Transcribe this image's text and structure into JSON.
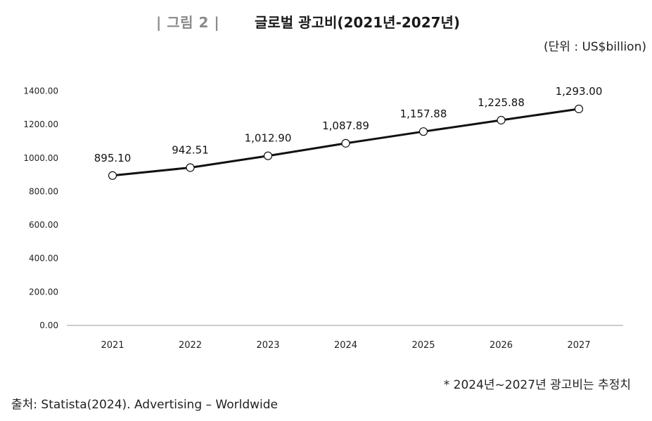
{
  "figure": {
    "label": "| 그림 2 |",
    "title": "글로벌 광고비(2021년-2027년)",
    "unit": "(단위 : US$billion)"
  },
  "note": "* 2024년~2027년 광고비는 추정치",
  "source": "출처: Statista(2024). Advertising – Worldwide",
  "colors": {
    "line": "#111111",
    "marker_fill": "#ffffff",
    "axis": "#999999",
    "label_gray": "#8a8a8a"
  },
  "chart_data": {
    "type": "line",
    "title": "글로벌 광고비(2021년-2027년)",
    "xlabel": "",
    "ylabel": "",
    "categories": [
      "2021",
      "2022",
      "2023",
      "2024",
      "2025",
      "2026",
      "2027"
    ],
    "values": [
      895.1,
      942.51,
      1012.9,
      1087.89,
      1157.88,
      1225.88,
      1293.0
    ],
    "data_labels": [
      "895.10",
      "942.51",
      "1,012.90",
      "1,087.89",
      "1,157.88",
      "1,225.88",
      "1,293.00"
    ],
    "ylim": [
      0,
      1400
    ],
    "yticks": [
      0,
      200,
      400,
      600,
      800,
      1000,
      1200,
      1400
    ],
    "ytick_labels": [
      "0.00",
      "200.00",
      "400.00",
      "600.00",
      "800.00",
      "1000.00",
      "1200.00",
      "1400.00"
    ],
    "grid": false,
    "legend": "none",
    "markers": "hollow-circle"
  }
}
